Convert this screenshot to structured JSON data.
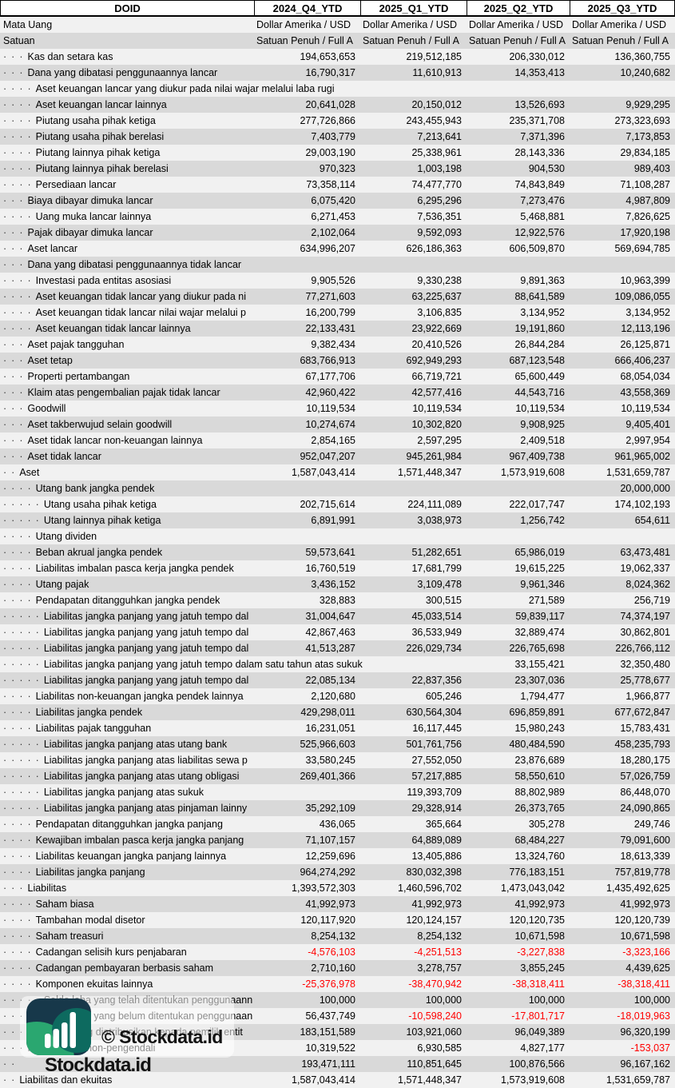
{
  "header": {
    "ticker": "DOID",
    "columns": [
      "2024_Q4_YTD",
      "2025_Q1_YTD",
      "2025_Q2_YTD",
      "2025_Q3_YTD"
    ]
  },
  "meta": {
    "mata_uang": {
      "label": "Mata Uang",
      "values": [
        "Dollar Amerika / USD",
        "Dollar Amerika / USD",
        "Dollar Amerika / USD",
        "Dollar Amerika / USD"
      ]
    },
    "satuan": {
      "label": "Satuan",
      "values": [
        "Satuan Penuh / Full A",
        "Satuan Penuh / Full A",
        "Satuan Penuh / Full A",
        "Satuan Penuh / Full A"
      ]
    }
  },
  "rows": [
    {
      "label": "Kas dan setara kas",
      "level": 3,
      "values": [
        "194,653,653",
        "219,512,185",
        "206,330,012",
        "136,360,755"
      ]
    },
    {
      "label": "Dana yang dibatasi penggunaannya lancar",
      "level": 3,
      "values": [
        "16,790,317",
        "11,610,913",
        "14,353,413",
        "10,240,682"
      ]
    },
    {
      "label": "Aset keuangan lancar yang diukur pada nilai wajar melalui laba rugi",
      "level": 4,
      "values": [
        "",
        "",
        "",
        ""
      ],
      "overflow": true
    },
    {
      "label": "Aset keuangan lancar lainnya",
      "level": 4,
      "values": [
        "20,641,028",
        "20,150,012",
        "13,526,693",
        "9,929,295"
      ]
    },
    {
      "label": "Piutang usaha pihak ketiga",
      "level": 4,
      "values": [
        "277,726,866",
        "243,455,943",
        "235,371,708",
        "273,323,693"
      ]
    },
    {
      "label": "Piutang usaha pihak berelasi",
      "level": 4,
      "values": [
        "7,403,779",
        "7,213,641",
        "7,371,396",
        "7,173,853"
      ]
    },
    {
      "label": "Piutang lainnya pihak ketiga",
      "level": 4,
      "values": [
        "29,003,190",
        "25,338,961",
        "28,143,336",
        "29,834,185"
      ]
    },
    {
      "label": "Piutang lainnya pihak berelasi",
      "level": 4,
      "values": [
        "970,323",
        "1,003,198",
        "904,530",
        "989,403"
      ]
    },
    {
      "label": "Persediaan lancar",
      "level": 4,
      "values": [
        "73,358,114",
        "74,477,770",
        "74,843,849",
        "71,108,287"
      ]
    },
    {
      "label": "Biaya dibayar dimuka lancar",
      "level": 3,
      "values": [
        "6,075,420",
        "6,295,296",
        "7,273,476",
        "4,987,809"
      ]
    },
    {
      "label": "Uang muka lancar lainnya",
      "level": 4,
      "values": [
        "6,271,453",
        "7,536,351",
        "5,468,881",
        "7,826,625"
      ]
    },
    {
      "label": "Pajak dibayar dimuka lancar",
      "level": 3,
      "values": [
        "2,102,064",
        "9,592,093",
        "12,922,576",
        "17,920,198"
      ]
    },
    {
      "label": "Aset lancar",
      "level": 3,
      "values": [
        "634,996,207",
        "626,186,363",
        "606,509,870",
        "569,694,785"
      ]
    },
    {
      "label": "Dana yang dibatasi penggunaannya tidak lancar",
      "level": 3,
      "values": [
        "",
        "",
        "",
        ""
      ]
    },
    {
      "label": "Investasi pada entitas asosiasi",
      "level": 4,
      "values": [
        "9,905,526",
        "9,330,238",
        "9,891,363",
        "10,963,399"
      ]
    },
    {
      "label": "Aset keuangan tidak lancar yang diukur pada ni",
      "level": 4,
      "values": [
        "77,271,603",
        "63,225,637",
        "88,641,589",
        "109,086,055"
      ]
    },
    {
      "label": "Aset keuangan tidak lancar nilai wajar melalui p",
      "level": 4,
      "values": [
        "16,200,799",
        "3,106,835",
        "3,134,952",
        "3,134,952"
      ]
    },
    {
      "label": "Aset keuangan tidak lancar lainnya",
      "level": 4,
      "values": [
        "22,133,431",
        "23,922,669",
        "19,191,860",
        "12,113,196"
      ]
    },
    {
      "label": "Aset pajak tangguhan",
      "level": 3,
      "values": [
        "9,382,434",
        "20,410,526",
        "26,844,284",
        "26,125,871"
      ]
    },
    {
      "label": "Aset tetap",
      "level": 3,
      "values": [
        "683,766,913",
        "692,949,293",
        "687,123,548",
        "666,406,237"
      ]
    },
    {
      "label": "Properti pertambangan",
      "level": 3,
      "values": [
        "67,177,706",
        "66,719,721",
        "65,600,449",
        "68,054,034"
      ]
    },
    {
      "label": "Klaim atas pengembalian pajak tidak lancar",
      "level": 3,
      "values": [
        "42,960,422",
        "42,577,416",
        "44,543,716",
        "43,558,369"
      ]
    },
    {
      "label": "Goodwill",
      "level": 3,
      "values": [
        "10,119,534",
        "10,119,534",
        "10,119,534",
        "10,119,534"
      ]
    },
    {
      "label": "Aset takberwujud selain goodwill",
      "level": 3,
      "values": [
        "10,274,674",
        "10,302,820",
        "9,908,925",
        "9,405,401"
      ]
    },
    {
      "label": "Aset tidak lancar non-keuangan lainnya",
      "level": 3,
      "values": [
        "2,854,165",
        "2,597,295",
        "2,409,518",
        "2,997,954"
      ]
    },
    {
      "label": "Aset tidak lancar",
      "level": 3,
      "values": [
        "952,047,207",
        "945,261,984",
        "967,409,738",
        "961,965,002"
      ]
    },
    {
      "label": "Aset",
      "level": 2,
      "values": [
        "1,587,043,414",
        "1,571,448,347",
        "1,573,919,608",
        "1,531,659,787"
      ]
    },
    {
      "label": "Utang bank jangka pendek",
      "level": 4,
      "values": [
        "",
        "",
        "",
        "20,000,000"
      ]
    },
    {
      "label": "Utang usaha pihak ketiga",
      "level": 5,
      "values": [
        "202,715,614",
        "224,111,089",
        "222,017,747",
        "174,102,193"
      ]
    },
    {
      "label": "Utang lainnya pihak ketiga",
      "level": 5,
      "values": [
        "6,891,991",
        "3,038,973",
        "1,256,742",
        "654,611"
      ]
    },
    {
      "label": "Utang dividen",
      "level": 4,
      "values": [
        "",
        "",
        "",
        ""
      ]
    },
    {
      "label": "Beban akrual jangka pendek",
      "level": 4,
      "values": [
        "59,573,641",
        "51,282,651",
        "65,986,019",
        "63,473,481"
      ]
    },
    {
      "label": "Liabilitas imbalan pasca kerja jangka pendek",
      "level": 4,
      "values": [
        "16,760,519",
        "17,681,799",
        "19,615,225",
        "19,062,337"
      ]
    },
    {
      "label": "Utang pajak",
      "level": 4,
      "values": [
        "3,436,152",
        "3,109,478",
        "9,961,346",
        "8,024,362"
      ]
    },
    {
      "label": "Pendapatan ditangguhkan jangka pendek",
      "level": 4,
      "values": [
        "328,883",
        "300,515",
        "271,589",
        "256,719"
      ]
    },
    {
      "label": "Liabilitas jangka panjang yang jatuh tempo dal",
      "level": 5,
      "values": [
        "31,004,647",
        "45,033,514",
        "59,839,117",
        "74,374,197"
      ]
    },
    {
      "label": "Liabilitas jangka panjang yang jatuh tempo dal",
      "level": 5,
      "values": [
        "42,867,463",
        "36,533,949",
        "32,889,474",
        "30,862,801"
      ]
    },
    {
      "label": "Liabilitas jangka panjang yang jatuh tempo dal",
      "level": 5,
      "values": [
        "41,513,287",
        "226,029,734",
        "226,765,698",
        "226,766,112"
      ]
    },
    {
      "label": "Liabilitas jangka panjang yang jatuh tempo dalam satu tahun atas sukuk",
      "level": 5,
      "values": [
        "",
        "",
        "33,155,421",
        "32,350,480"
      ],
      "overflow": true
    },
    {
      "label": "Liabilitas jangka panjang yang jatuh tempo dal",
      "level": 5,
      "values": [
        "22,085,134",
        "22,837,356",
        "23,307,036",
        "25,778,677"
      ]
    },
    {
      "label": "Liabilitas non-keuangan jangka pendek lainnya",
      "level": 4,
      "values": [
        "2,120,680",
        "605,246",
        "1,794,477",
        "1,966,877"
      ]
    },
    {
      "label": "Liabilitas jangka pendek",
      "level": 4,
      "values": [
        "429,298,011",
        "630,564,304",
        "696,859,891",
        "677,672,847"
      ]
    },
    {
      "label": "Liabilitas pajak tangguhan",
      "level": 4,
      "values": [
        "16,231,051",
        "16,117,445",
        "15,980,243",
        "15,783,431"
      ]
    },
    {
      "label": "Liabilitas jangka panjang atas utang bank",
      "level": 5,
      "values": [
        "525,966,603",
        "501,761,756",
        "480,484,590",
        "458,235,793"
      ]
    },
    {
      "label": "Liabilitas jangka panjang atas liabilitas sewa p",
      "level": 5,
      "values": [
        "33,580,245",
        "27,552,050",
        "23,876,689",
        "18,280,175"
      ]
    },
    {
      "label": "Liabilitas jangka panjang atas utang obligasi",
      "level": 5,
      "values": [
        "269,401,366",
        "57,217,885",
        "58,550,610",
        "57,026,759"
      ]
    },
    {
      "label": "Liabilitas jangka panjang atas sukuk",
      "level": 5,
      "values": [
        "",
        "119,393,709",
        "88,802,989",
        "86,448,070"
      ]
    },
    {
      "label": "Liabilitas jangka panjang atas pinjaman lainny",
      "level": 5,
      "values": [
        "35,292,109",
        "29,328,914",
        "26,373,765",
        "24,090,865"
      ]
    },
    {
      "label": "Pendapatan ditangguhkan jangka panjang",
      "level": 4,
      "values": [
        "436,065",
        "365,664",
        "305,278",
        "249,746"
      ]
    },
    {
      "label": "Kewajiban imbalan pasca kerja jangka panjang",
      "level": 4,
      "values": [
        "71,107,157",
        "64,889,089",
        "68,484,227",
        "79,091,600"
      ]
    },
    {
      "label": "Liabilitas keuangan jangka panjang lainnya",
      "level": 4,
      "values": [
        "12,259,696",
        "13,405,886",
        "13,324,760",
        "18,613,339"
      ]
    },
    {
      "label": "Liabilitas jangka panjang",
      "level": 4,
      "values": [
        "964,274,292",
        "830,032,398",
        "776,183,151",
        "757,819,778"
      ]
    },
    {
      "label": "Liabilitas",
      "level": 3,
      "values": [
        "1,393,572,303",
        "1,460,596,702",
        "1,473,043,042",
        "1,435,492,625"
      ]
    },
    {
      "label": "Saham biasa",
      "level": 4,
      "values": [
        "41,992,973",
        "41,992,973",
        "41,992,973",
        "41,992,973"
      ]
    },
    {
      "label": "Tambahan modal disetor",
      "level": 4,
      "values": [
        "120,117,920",
        "120,124,157",
        "120,120,735",
        "120,120,739"
      ]
    },
    {
      "label": "Saham treasuri",
      "level": 4,
      "values": [
        "8,254,132",
        "8,254,132",
        "10,671,598",
        "10,671,598"
      ]
    },
    {
      "label": "Cadangan selisih kurs penjabaran",
      "level": 4,
      "values": [
        "-4,576,103",
        "-4,251,513",
        "-3,227,838",
        "-3,323,166"
      ]
    },
    {
      "label": "Cadangan pembayaran berbasis saham",
      "level": 4,
      "values": [
        "2,710,160",
        "3,278,757",
        "3,855,245",
        "4,439,625"
      ]
    },
    {
      "label": "Komponen ekuitas lainnya",
      "level": 4,
      "values": [
        "-25,376,978",
        "-38,470,942",
        "-38,318,411",
        "-38,318,411"
      ]
    },
    {
      "label": "Saldo laba yang telah ditentukan penggunaann",
      "level": 5,
      "values": [
        "100,000",
        "100,000",
        "100,000",
        "100,000"
      ]
    },
    {
      "label": "Saldo laba yang belum ditentukan penggunaan",
      "level": 5,
      "values": [
        "56,437,749",
        "-10,598,240",
        "-17,801,717",
        "-18,019,963"
      ]
    },
    {
      "label": "Ekuitas yang diatribusikan kepada pemilik entit",
      "level": 4,
      "values": [
        "183,151,589",
        "103,921,060",
        "96,049,389",
        "96,320,199"
      ]
    },
    {
      "label": "Kepentingan non-pengendali",
      "level": 3,
      "values": [
        "10,319,522",
        "6,930,585",
        "4,827,177",
        "-153,037"
      ]
    },
    {
      "label": "Ekuitas",
      "level": 2,
      "values": [
        "193,471,111",
        "110,851,645",
        "100,876,566",
        "96,167,162"
      ],
      "hidden": true
    },
    {
      "label": "Liabilitas dan ekuitas",
      "level": 2,
      "values": [
        "1,587,043,414",
        "1,571,448,347",
        "1,573,919,608",
        "1,531,659,787"
      ]
    }
  ],
  "watermark": {
    "center": "© Stockdata.id",
    "brand": "Stockdata.id"
  },
  "colors": {
    "negative": "#FF0000",
    "row_light": "#F1F1F1",
    "row_dark": "#D9D9D9",
    "logo_navy": "#17384A",
    "logo_green": "#2AA770",
    "logo_teal": "#0D6A5F",
    "logo_bars": "#FFFFFF"
  }
}
